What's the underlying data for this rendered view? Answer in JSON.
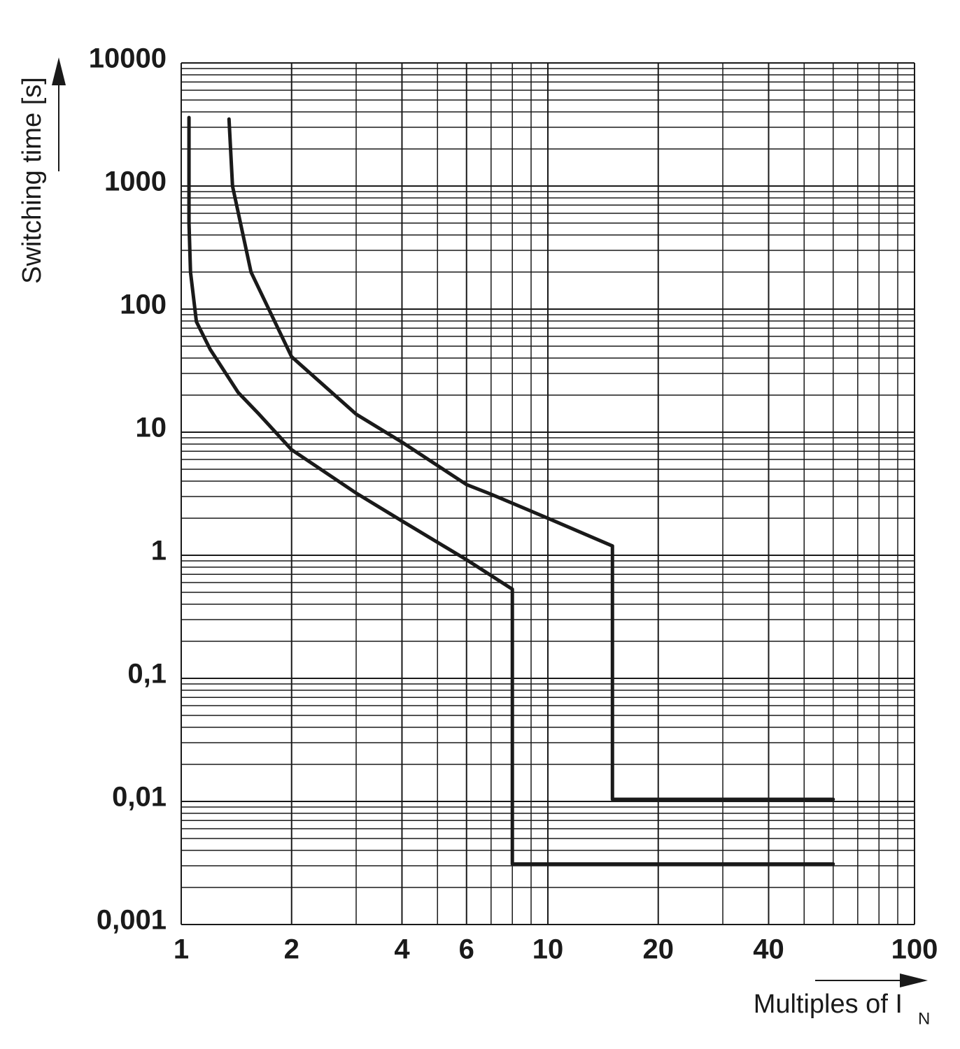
{
  "chart_data": {
    "type": "line",
    "x_label": "Multiples of I",
    "x_label_sub": "N",
    "y_label": "Switching time [s]",
    "log_x": true,
    "log_y": true,
    "grid": true,
    "xlim": [
      1,
      100
    ],
    "ylim": [
      0.001,
      10000
    ],
    "xticks": [
      1,
      2,
      4,
      6,
      10,
      20,
      40,
      100
    ],
    "yticks": [
      {
        "value": 0.001,
        "label": "0,001"
      },
      {
        "value": 0.01,
        "label": "0,01"
      },
      {
        "value": 0.1,
        "label": "0,1"
      },
      1,
      10,
      100,
      1000,
      10000
    ],
    "x_minor_grid": [
      3,
      5,
      7,
      8,
      9,
      30,
      50,
      60,
      70,
      80,
      90
    ],
    "y_minor_grid": [
      0.002,
      0.003,
      0.004,
      0.005,
      0.006,
      0.007,
      0.008,
      0.009,
      0.02,
      0.03,
      0.04,
      0.05,
      0.06,
      0.07,
      0.08,
      0.09,
      0.2,
      0.3,
      0.4,
      0.5,
      0.6,
      0.7,
      0.8,
      0.9,
      2,
      3,
      4,
      5,
      6,
      7,
      8,
      9,
      20,
      30,
      40,
      50,
      60,
      70,
      80,
      90,
      200,
      300,
      400,
      500,
      600,
      700,
      800,
      900,
      2000,
      3000,
      4000,
      5000,
      6000,
      7000,
      8000,
      9000
    ],
    "series": [
      {
        "color": "#1a1a1a",
        "x": [
          1.05,
          1.05,
          1.06,
          1.1,
          1.2,
          1.43,
          1.63,
          2,
          3,
          4,
          6,
          8,
          8,
          60
        ],
        "values": [
          3600,
          500,
          200,
          79,
          47,
          21,
          14,
          7.2,
          3.2,
          1.9,
          0.92,
          0.53,
          0.0031,
          0.0031
        ]
      },
      {
        "color": "#1a1a1a",
        "x": [
          1.35,
          1.38,
          1.55,
          2,
          3,
          4,
          6,
          6.95,
          10,
          15,
          15,
          60
        ],
        "values": [
          3500,
          1000,
          200,
          41,
          14,
          8.3,
          3.75,
          3.16,
          2.0,
          1.19,
          0.0104,
          0.0104
        ]
      }
    ]
  }
}
